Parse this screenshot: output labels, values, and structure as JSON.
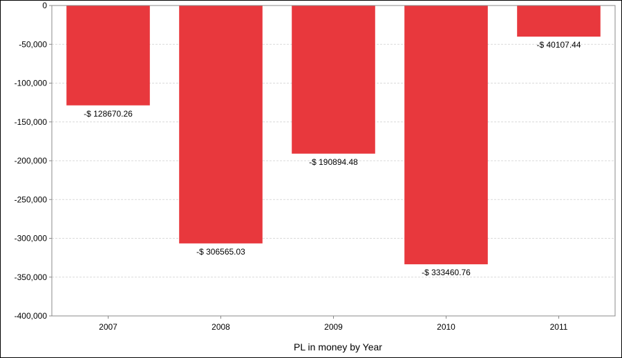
{
  "chart_data": {
    "type": "bar",
    "title": "",
    "xlabel": "PL in money by Year",
    "ylabel": "",
    "categories": [
      "2007",
      "2008",
      "2009",
      "2010",
      "2011"
    ],
    "values": [
      -128670.26,
      -306565.03,
      -190894.48,
      -333460.76,
      -40107.44
    ],
    "data_labels": [
      "-$ 128670.26",
      "-$ 306565.03",
      "-$ 190894.48",
      "-$ 333460.76",
      "-$ 40107.44"
    ],
    "ylim": [
      -400000,
      0
    ],
    "yticks": [
      0,
      -50000,
      -100000,
      -150000,
      -200000,
      -250000,
      -300000,
      -350000,
      -400000
    ],
    "ytick_labels": [
      "0",
      "-50,000",
      "-100,000",
      "-150,000",
      "-200,000",
      "-250,000",
      "-300,000",
      "-350,000",
      "-400,000"
    ],
    "grid": true,
    "legend": "none",
    "colors": {
      "bar": "#e8383d",
      "grid": "#d9d9d9",
      "axis": "#888888"
    }
  }
}
